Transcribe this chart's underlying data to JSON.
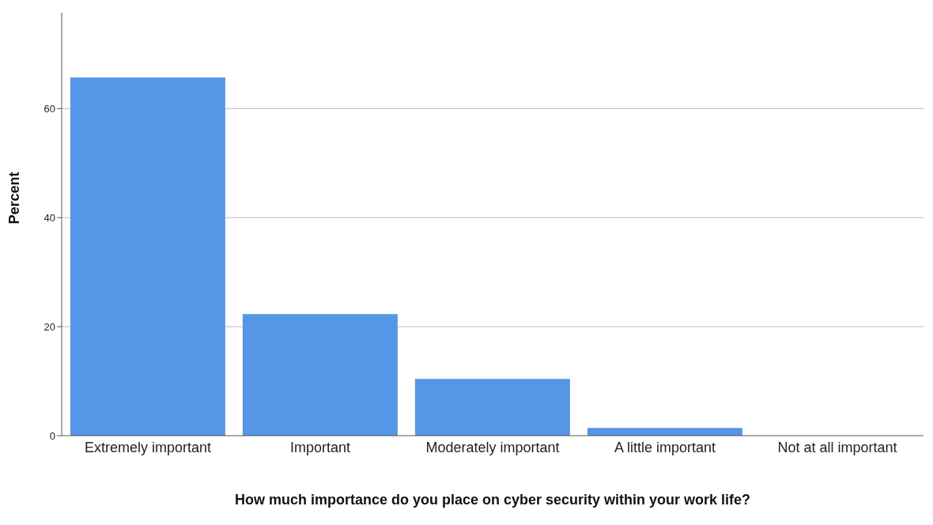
{
  "chart_data": {
    "type": "bar",
    "xlabel": "How much importance do you place on cyber security within your work life?",
    "ylabel": "Percent",
    "categories": [
      "Extremely important",
      "Important",
      "Moderately important",
      "A little important",
      "Not at all important"
    ],
    "values": [
      65.7,
      22.3,
      10.4,
      1.4,
      0
    ],
    "color": "#5596e6",
    "ylim": [
      0,
      77.6
    ],
    "yticks": [
      0,
      20,
      40,
      60
    ],
    "grid": "y",
    "legend": false
  }
}
